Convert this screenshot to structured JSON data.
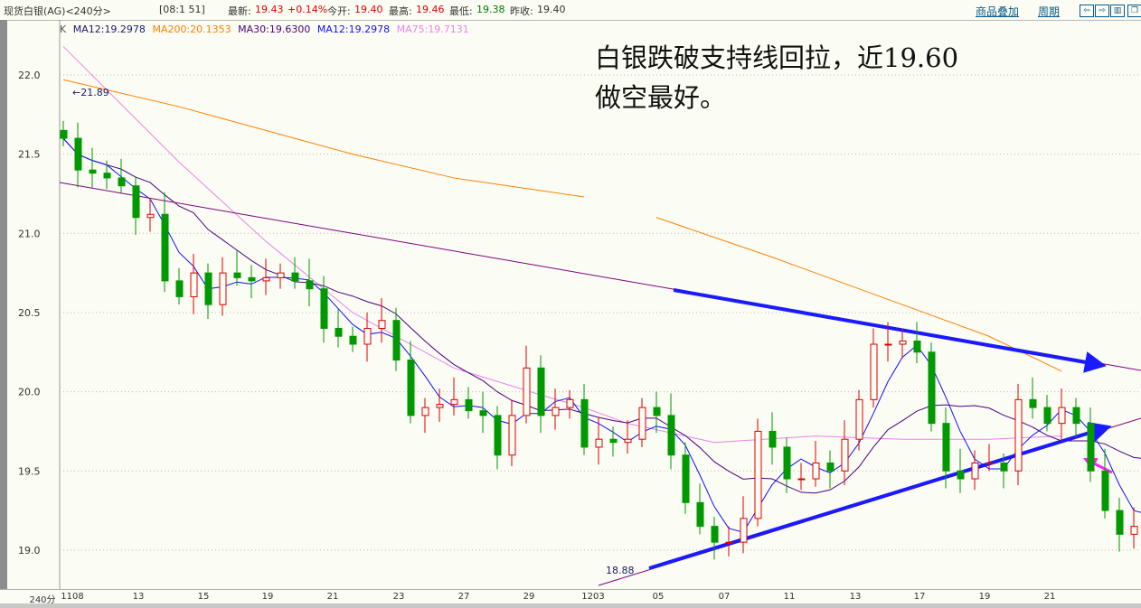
{
  "header": {
    "title": "现货白银(AG)<240分>",
    "time": "[08:1 51]",
    "latest_label": "最新:",
    "latest": "19.43",
    "change": "+0.14%",
    "open_label": "今开:",
    "open": "19.40",
    "high_label": "最高:",
    "high": "19.46",
    "low_label": "最低:",
    "low": "19.38",
    "prev_label": "昨收:",
    "prev": "19.40",
    "overlay_link": "商品叠加",
    "period_link": "周期",
    "buttons": [
      "left-arrow-icon",
      "right-arrow-icon",
      "split-panel-icon",
      "restore-window-icon"
    ]
  },
  "legend": {
    "k": "K",
    "items": [
      {
        "text": "MA12:19.2978",
        "color": "#1a1a6e"
      },
      {
        "text": "MA200:20.1353",
        "color": "#ff8000"
      },
      {
        "text": "MA30:19.6300",
        "color": "#4b0082"
      },
      {
        "text": "MA12:19.2978",
        "color": "#1010ff"
      },
      {
        "text": "MA75:19.7131",
        "color": "#ee82ee"
      }
    ]
  },
  "annotation": {
    "line1": "白银跌破支持线回拉，近19.60",
    "line2": "做空最好。"
  },
  "chart_data": {
    "type": "candlestick",
    "period_label": "240分",
    "ylim": [
      18.75,
      22.2
    ],
    "yticks": [
      "22.0",
      "21.5",
      "21.0",
      "20.5",
      "20.0",
      "19.5",
      "19.0"
    ],
    "xticks": [
      "1108",
      "13",
      "15",
      "19",
      "21",
      "23",
      "27",
      "29",
      "1203",
      "05",
      "07",
      "11",
      "13",
      "17",
      "19",
      "21"
    ],
    "max_label": "21.89",
    "min_label": "18.88",
    "up_color": "#e00000",
    "down_color": "#009900",
    "closes": [
      21.6,
      21.4,
      21.38,
      21.35,
      21.3,
      21.1,
      21.12,
      20.7,
      20.6,
      20.75,
      20.55,
      20.75,
      20.72,
      20.7,
      20.72,
      20.75,
      20.7,
      20.65,
      20.4,
      20.35,
      20.3,
      20.4,
      20.45,
      20.2,
      19.85,
      19.9,
      19.92,
      19.95,
      19.88,
      19.85,
      19.6,
      19.85,
      20.15,
      19.85,
      19.9,
      19.95,
      19.65,
      19.7,
      19.68,
      19.7,
      19.9,
      19.85,
      19.6,
      19.3,
      19.15,
      19.05,
      19.05,
      19.2,
      19.75,
      19.65,
      19.45,
      19.45,
      19.55,
      19.5,
      19.7,
      19.95,
      20.3,
      20.3,
      20.32,
      20.25,
      19.8,
      19.5,
      19.45,
      19.55,
      19.55,
      19.5,
      19.95,
      19.9,
      19.8,
      19.9,
      19.8,
      19.5,
      19.25,
      19.1,
      19.15,
      19.4,
      19.42
    ],
    "ma75": [
      [
        0,
        22.18
      ],
      [
        8,
        21.45
      ],
      [
        14,
        20.95
      ],
      [
        20,
        20.5
      ],
      [
        27,
        20.15
      ],
      [
        33,
        19.98
      ],
      [
        36,
        19.9
      ],
      [
        39,
        19.8
      ],
      [
        45,
        19.68
      ],
      [
        52,
        19.72
      ],
      [
        58,
        19.7
      ],
      [
        64,
        19.7
      ],
      [
        69,
        19.72
      ]
    ],
    "ma200": [
      [
        [
          0,
          21.97
        ],
        [
          8,
          21.8
        ],
        [
          14,
          21.65
        ],
        [
          20,
          21.5
        ],
        [
          27,
          21.35
        ],
        [
          36,
          21.23
        ]
      ],
      [
        [
          41,
          21.1
        ],
        [
          49,
          20.85
        ],
        [
          58,
          20.55
        ],
        [
          64,
          20.35
        ],
        [
          69,
          20.13
        ]
      ]
    ]
  }
}
